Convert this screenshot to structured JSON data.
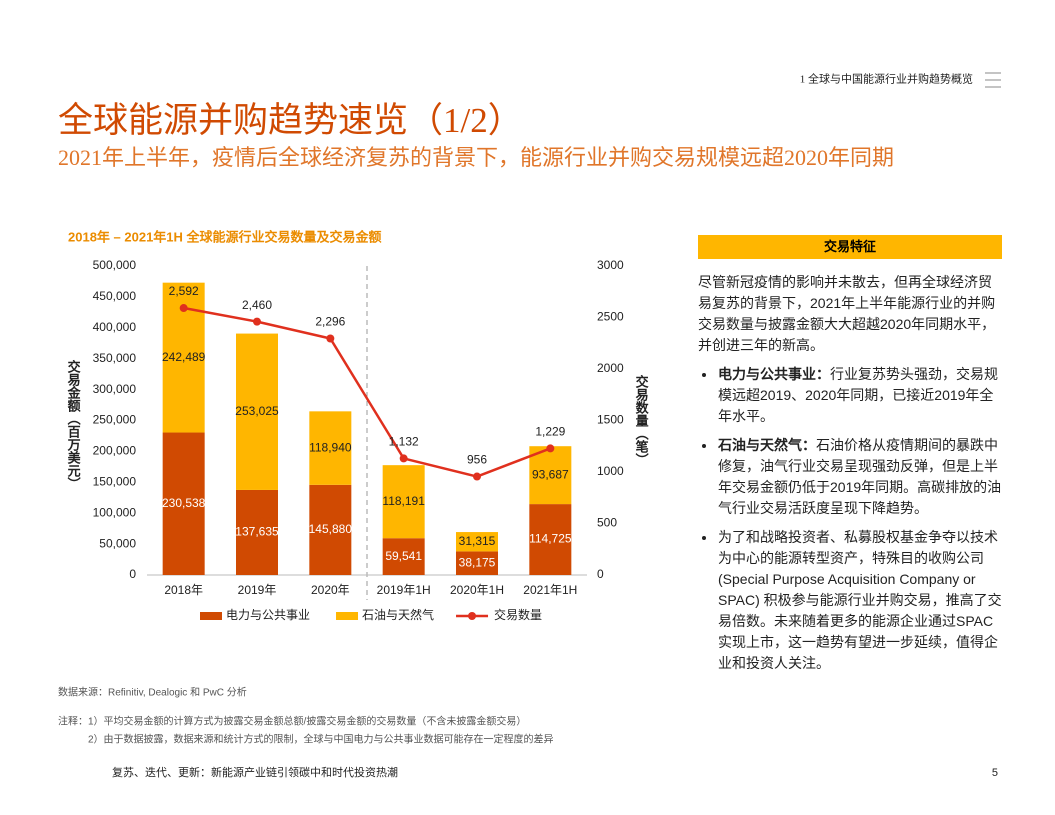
{
  "header": {
    "section": "1 全球与中国能源行业并购趋势概览",
    "title": "全球能源并购趋势速览（1/2）",
    "subtitle": "2021年上半年，疫情后全球经济复苏的背景下，能源行业并购交易规模远超2020年同期"
  },
  "chart_data": {
    "type": "bar",
    "stacked": true,
    "title": "2018年 – 2021年1H 全球能源行业交易数量及交易金额",
    "y_label": "交易金额（百万美元）",
    "y2_label": "交易数量（笔）",
    "categories": [
      "2018年",
      "2019年",
      "2020年",
      "2019年1H",
      "2020年1H",
      "2021年1H"
    ],
    "series": [
      {
        "name": "电力与公共事业",
        "color": "#d04a02",
        "values": [
          230538,
          137635,
          145880,
          59541,
          38175,
          114725
        ],
        "value_labels": [
          "230,538",
          "137,635",
          "145,880",
          "59,541",
          "38,175",
          "114,725"
        ]
      },
      {
        "name": "石油与天然气",
        "color": "#ffb600",
        "values": [
          242489,
          253025,
          118940,
          118191,
          31315,
          93687
        ],
        "value_labels": [
          "242,489",
          "253,025",
          "118,940",
          "118,191",
          "31,315",
          "93,687"
        ]
      },
      {
        "name": "交易数量",
        "type": "line",
        "axis": "y2",
        "color": "#e0301e",
        "values": [
          2592,
          2460,
          2296,
          1132,
          956,
          1229
        ],
        "value_labels": [
          "2,592",
          "2,460",
          "2,296",
          "1,132",
          "956",
          "1,229"
        ]
      }
    ],
    "ylim": [
      0,
      500000
    ],
    "yticks": [
      {
        "value": 0,
        "label": "0"
      },
      {
        "value": 50000,
        "label": "50,000"
      },
      {
        "value": 100000,
        "label": "100,000"
      },
      {
        "value": 150000,
        "label": "150,000"
      },
      {
        "value": 200000,
        "label": "200,000"
      },
      {
        "value": 250000,
        "label": "250,000"
      },
      {
        "value": 300000,
        "label": "300,000"
      },
      {
        "value": 350000,
        "label": "350,000"
      },
      {
        "value": 400000,
        "label": "400,000"
      },
      {
        "value": 450000,
        "label": "450,000"
      },
      {
        "value": 500000,
        "label": "500,000"
      }
    ],
    "y2lim": [
      0,
      3000
    ],
    "y2ticks": [
      0,
      500,
      1000,
      1500,
      2000,
      2500,
      3000
    ],
    "grid": false,
    "legend": "bottom"
  },
  "panel": {
    "heading": "交易特征",
    "intro": "尽管新冠疫情的影响并未散去，但再全球经济贸易复苏的背景下，2021年上半年能源行业的并购交易数量与披露金额大大超越2020年同期水平，并创进三年的新高。",
    "bullets": [
      {
        "lead": "电力与公共事业：",
        "text": "行业复苏势头强劲，交易规模远超2019、2020年同期，已接近2019年全年水平。"
      },
      {
        "lead": "石油与天然气：",
        "text": "石油价格从疫情期间的暴跌中修复，油气行业交易呈现强劲反弹，但是上半年交易金额仍低于2019年同期。高碳排放的油气行业交易活跃度呈现下降趋势。"
      },
      {
        "lead": "",
        "text": "为了和战略投资者、私募股权基金争夺以技术为中心的能源转型资产，特殊目的收购公司 (Special Purpose Acquisition Company or SPAC) 积极参与能源行业并购交易，推高了交易倍数。未来随着更多的能源企业通过SPAC实现上市，这一趋势有望进一步延续，值得企业和投资人关注。"
      }
    ]
  },
  "source": "数据来源：Refinitiv, Dealogic 和 PwC 分析",
  "notes": {
    "label": "注释：",
    "items": [
      "1）平均交易金额的计算方式为披露交易金额总额/披露交易金额的交易数量（不含未披露金额交易）",
      "2）由于数据披露，数据来源和统计方式的限制，全球与中国电力与公共事业数据可能存在一定程度的差异"
    ]
  },
  "footer": {
    "text": "复苏、迭代、更新：新能源产业链引领碳中和时代投资热潮",
    "page": "5"
  }
}
